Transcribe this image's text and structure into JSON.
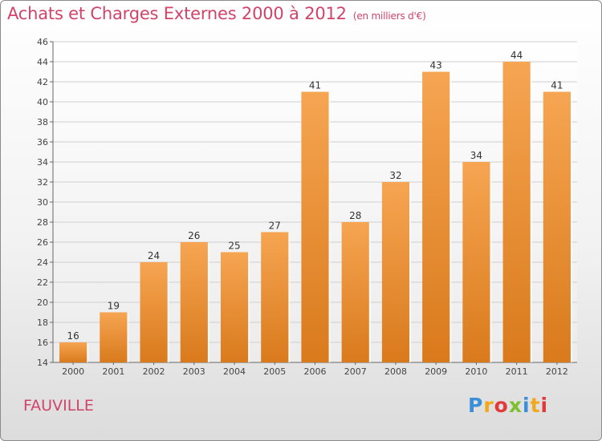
{
  "header": {
    "title": "Achats et Charges Externes 2000 à 2012",
    "unit": "(en milliers d'€)"
  },
  "footer": {
    "commune": "FAUVILLE",
    "logo_letters": [
      "P",
      "r",
      "o",
      "x",
      "i",
      "t",
      "i"
    ],
    "logo_colors": [
      "#3b8fd9",
      "#f2a81d",
      "#e03a3a",
      "#7cbf2f",
      "#3b8fd9",
      "#f2a81d",
      "#e03a3a"
    ]
  },
  "colors": {
    "bar_top": "#f6a552",
    "bar_bottom": "#d97a1c",
    "grid": "#cfcfcf",
    "title": "#d0446a"
  },
  "chart_data": {
    "type": "bar",
    "categories": [
      "2000",
      "2001",
      "2002",
      "2003",
      "2004",
      "2005",
      "2006",
      "2007",
      "2008",
      "2009",
      "2010",
      "2011",
      "2012"
    ],
    "values": [
      16,
      19,
      24,
      26,
      25,
      27,
      41,
      28,
      32,
      43,
      34,
      44,
      41
    ],
    "ylim": [
      14,
      46
    ],
    "yticks": [
      14,
      16,
      18,
      20,
      22,
      24,
      26,
      28,
      30,
      32,
      34,
      36,
      38,
      40,
      42,
      44,
      46
    ],
    "grid": true
  }
}
